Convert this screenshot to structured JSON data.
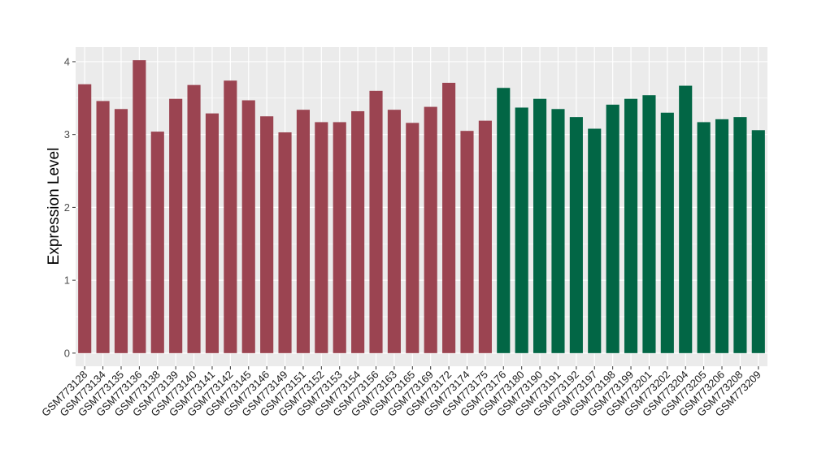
{
  "chart_data": {
    "type": "bar",
    "title": "",
    "xlabel": "",
    "ylabel": "Expression Level",
    "ylim": [
      -0.18,
      4.2
    ],
    "yticks": [
      0,
      1,
      2,
      3,
      4
    ],
    "grid": true,
    "legend": "none",
    "colors": {
      "group1": "#9b4451",
      "group2": "#026645",
      "panel": "#ebebeb",
      "grid": "#ffffff"
    },
    "categories": [
      "GSM773128",
      "GSM773134",
      "GSM773135",
      "GSM773136",
      "GSM773138",
      "GSM773139",
      "GSM773140",
      "GSM773141",
      "GSM773142",
      "GSM773145",
      "GSM773146",
      "GSM773149",
      "GSM773151",
      "GSM773152",
      "GSM773153",
      "GSM773154",
      "GSM773156",
      "GSM773163",
      "GSM773165",
      "GSM773169",
      "GSM773172",
      "GSM773174",
      "GSM773175",
      "GSM773176",
      "GSM773180",
      "GSM773190",
      "GSM773191",
      "GSM773192",
      "GSM773197",
      "GSM773198",
      "GSM773199",
      "GSM773201",
      "GSM773202",
      "GSM773204",
      "GSM773205",
      "GSM773206",
      "GSM773208",
      "GSM773209"
    ],
    "values": [
      3.69,
      3.46,
      3.35,
      4.02,
      3.04,
      3.49,
      3.68,
      3.29,
      3.74,
      3.47,
      3.25,
      3.03,
      3.34,
      3.17,
      3.17,
      3.32,
      3.6,
      3.34,
      3.16,
      3.38,
      3.71,
      3.05,
      3.19,
      3.64,
      3.37,
      3.49,
      3.35,
      3.24,
      3.08,
      3.41,
      3.49,
      3.54,
      3.3,
      3.67,
      3.17,
      3.21,
      3.24,
      3.06
    ],
    "groups": [
      1,
      1,
      1,
      1,
      1,
      1,
      1,
      1,
      1,
      1,
      1,
      1,
      1,
      1,
      1,
      1,
      1,
      1,
      1,
      1,
      1,
      1,
      1,
      2,
      2,
      2,
      2,
      2,
      2,
      2,
      2,
      2,
      2,
      2,
      2,
      2,
      2,
      2
    ]
  }
}
